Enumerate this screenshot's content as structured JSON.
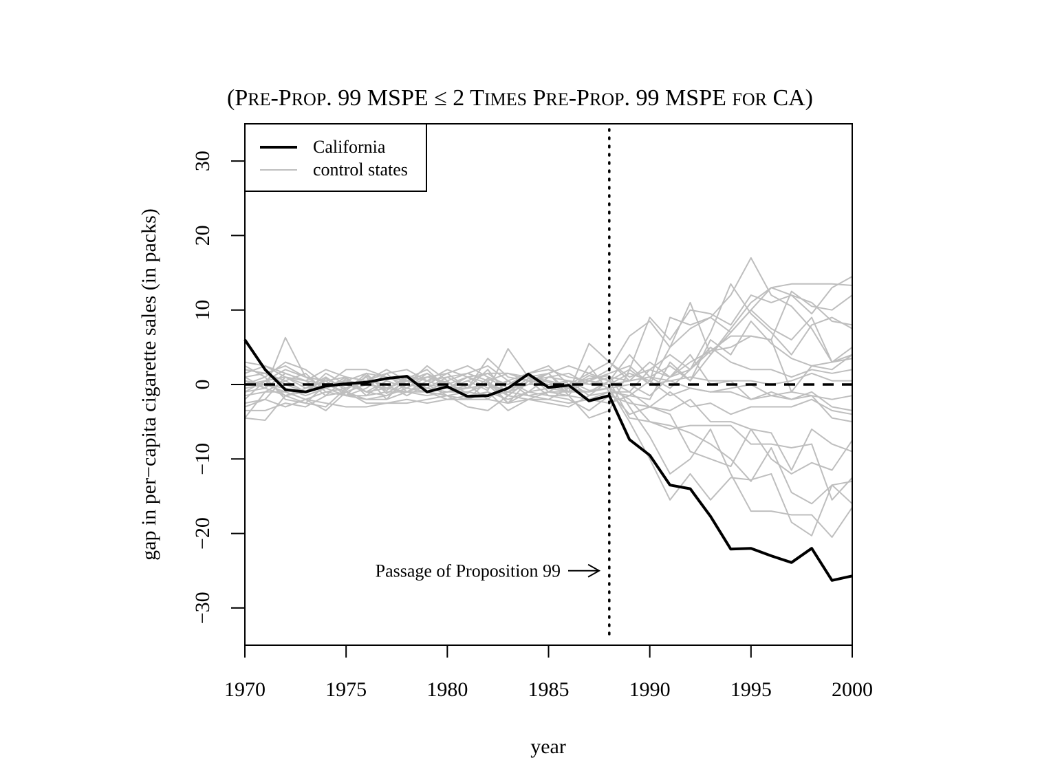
{
  "chart_data": {
    "type": "line",
    "title_parts": [
      {
        "t": "(",
        "sc": false
      },
      {
        "t": "P",
        "sc": false
      },
      {
        "t": "RE",
        "sc": true
      },
      {
        "t": "-P",
        "sc": false
      },
      {
        "t": "ROP",
        "sc": true
      },
      {
        "t": ". 99 MSPE ≤ 2 T",
        "sc": false
      },
      {
        "t": "IMES",
        "sc": true
      },
      {
        "t": " P",
        "sc": false
      },
      {
        "t": "RE",
        "sc": true
      },
      {
        "t": "-P",
        "sc": false
      },
      {
        "t": "ROP",
        "sc": true
      },
      {
        "t": ". 99 MSPE ",
        "sc": false
      },
      {
        "t": "FOR",
        "sc": true
      },
      {
        "t": " CA)",
        "sc": false
      }
    ],
    "xlabel": "year",
    "ylabel": "gap in per−capita cigarette sales (in packs)",
    "xlim": [
      1970,
      2000
    ],
    "ylim": [
      -35,
      35
    ],
    "x_ticks": [
      1970,
      1975,
      1980,
      1985,
      1990,
      1995,
      2000
    ],
    "x_tick_labels": [
      "1970",
      "1975",
      "1980",
      "1985",
      "1990",
      "1995",
      "2000"
    ],
    "y_ticks": [
      -30,
      -20,
      -10,
      0,
      10,
      20,
      30
    ],
    "y_tick_labels": [
      "−30",
      "−20",
      "−10",
      "0",
      "10",
      "20",
      "30"
    ],
    "grid": false,
    "legend": {
      "position": "top-left",
      "entries": [
        {
          "label": "California",
          "color": "#000000",
          "width": 4
        },
        {
          "label": "control states",
          "color": "#bebebe",
          "width": 2
        }
      ]
    },
    "reference_line": {
      "y": 0,
      "style": "dashed",
      "color": "#000000"
    },
    "event_line": {
      "x": 1988,
      "style": "dotted",
      "color": "#000000"
    },
    "annotation": {
      "text": "Passage of Proposition 99",
      "arrow_x": 1987.5,
      "y": -25
    },
    "x": [
      1970,
      1971,
      1972,
      1973,
      1974,
      1975,
      1976,
      1977,
      1978,
      1979,
      1980,
      1981,
      1982,
      1983,
      1984,
      1985,
      1986,
      1987,
      1988,
      1989,
      1990,
      1991,
      1992,
      1993,
      1994,
      1995,
      1996,
      1997,
      1998,
      1999,
      2000
    ],
    "series": [
      {
        "role": "treated",
        "color": "#000000",
        "values": [
          6.0,
          2.0,
          -0.7,
          -1.0,
          -0.2,
          0.1,
          0.3,
          0.8,
          1.1,
          -1.0,
          -0.3,
          -1.6,
          -1.5,
          -0.5,
          1.4,
          -0.4,
          -0.1,
          -2.2,
          -1.5,
          -7.4,
          -9.5,
          -13.5,
          -14.0,
          -17.7,
          -22.1,
          -22.0,
          -23.0,
          -23.9,
          -22.0,
          -26.3,
          -25.7
        ]
      },
      {
        "role": "control",
        "color": "#bebebe",
        "values": [
          2.0,
          1.5,
          0.5,
          -1.0,
          0.8,
          -0.5,
          0.3,
          -0.8,
          1.2,
          0.5,
          -0.5,
          1.0,
          0.2,
          -1.0,
          0.8,
          0.3,
          -0.5,
          1.2,
          0.5,
          -4.5,
          -5.0,
          -5.5,
          -6.5,
          -8.0,
          -10.0,
          -13.0,
          -8.5,
          -14.5,
          -16.0,
          -13.5,
          -13.0
        ]
      },
      {
        "role": "control",
        "color": "#bebebe",
        "values": [
          -3.0,
          -2.0,
          1.0,
          0.5,
          -1.5,
          0.8,
          -1.0,
          0.5,
          -0.5,
          1.0,
          0.3,
          -1.2,
          0.8,
          -0.5,
          1.5,
          -1.0,
          0.5,
          -0.8,
          -0.5,
          -5.0,
          -10.0,
          -15.5,
          -12.0,
          -15.5,
          -12.5,
          -12.8,
          -12.0,
          -18.5,
          -20.3,
          -13.5,
          -16.0
        ]
      },
      {
        "role": "control",
        "color": "#bebebe",
        "values": [
          1.0,
          -0.5,
          6.3,
          1.0,
          0.5,
          -1.5,
          1.2,
          -0.5,
          0.8,
          2.0,
          -0.5,
          0.5,
          -0.8,
          4.8,
          1.0,
          0.5,
          -0.2,
          0.8,
          1.2,
          -3.0,
          -7.0,
          -12.0,
          -10.0,
          -6.0,
          -12.0,
          -17.0,
          -17.0,
          -17.5,
          -17.5,
          -20.5,
          -16.5
        ]
      },
      {
        "role": "control",
        "color": "#bebebe",
        "values": [
          -4.5,
          -4.8,
          -1.5,
          -0.5,
          1.0,
          -0.8,
          1.5,
          -1.2,
          0.5,
          -0.5,
          1.0,
          -0.5,
          2.0,
          -1.5,
          0.5,
          1.5,
          -1.5,
          2.5,
          -1.0,
          -4.0,
          -3.0,
          -4.0,
          -9.0,
          -10.0,
          -11.0,
          -6.0,
          -6.5,
          -11.5,
          -6.0,
          -8.0,
          -9.0
        ]
      },
      {
        "role": "control",
        "color": "#bebebe",
        "values": [
          2.5,
          1.0,
          -2.0,
          -2.5,
          0.0,
          0.5,
          -1.0,
          -0.5,
          0.5,
          -0.5,
          -1.0,
          -0.5,
          0.0,
          -1.5,
          0.5,
          0.0,
          -0.5,
          0.5,
          -0.5,
          -2.0,
          -5.0,
          -6.0,
          -5.5,
          -5.5,
          -5.5,
          -8.0,
          -8.0,
          -8.5,
          -8.0,
          -15.5,
          -12.5
        ]
      },
      {
        "role": "control",
        "color": "#bebebe",
        "values": [
          0.5,
          -0.5,
          -1.5,
          -2.5,
          -3.0,
          -0.5,
          1.0,
          -2.0,
          1.0,
          -1.0,
          0.5,
          -2.0,
          0.5,
          -2.5,
          0.5,
          -1.5,
          -2.0,
          -3.5,
          -1.5,
          -2.5,
          -3.0,
          -3.5,
          -2.0,
          -5.0,
          -5.0,
          -6.0,
          -10.0,
          -12.0,
          -10.5,
          -11.5,
          -7.5
        ]
      },
      {
        "role": "control",
        "color": "#bebebe",
        "values": [
          1.5,
          2.5,
          1.0,
          -0.5,
          0.5,
          -1.5,
          -0.5,
          1.5,
          -1.0,
          0.5,
          2.0,
          1.0,
          -0.5,
          0.5,
          -1.0,
          1.0,
          0.5,
          -1.5,
          0.5,
          4.0,
          1.0,
          -0.5,
          2.0,
          7.0,
          13.5,
          9.5,
          7.0,
          4.0,
          8.0,
          9.0,
          7.5
        ]
      },
      {
        "role": "control",
        "color": "#bebebe",
        "values": [
          -2.0,
          0.5,
          2.0,
          1.0,
          -0.5,
          1.0,
          -1.5,
          0.5,
          -0.5,
          1.5,
          -0.5,
          0.5,
          1.5,
          -0.5,
          0.0,
          1.5,
          -1.0,
          0.5,
          2.0,
          6.5,
          8.5,
          5.0,
          7.5,
          9.0,
          12.0,
          17.0,
          12.0,
          10.5,
          7.5,
          3.0,
          3.5
        ]
      },
      {
        "role": "control",
        "color": "#bebebe",
        "values": [
          3.0,
          2.5,
          1.5,
          0.5,
          2.0,
          1.0,
          0.5,
          2.0,
          0.5,
          1.0,
          1.5,
          2.5,
          1.0,
          0.0,
          1.5,
          2.0,
          1.0,
          0.5,
          1.5,
          2.5,
          0.0,
          5.0,
          11.0,
          4.0,
          7.5,
          11.0,
          13.0,
          12.0,
          9.5,
          13.0,
          14.5
        ]
      },
      {
        "role": "control",
        "color": "#bebebe",
        "values": [
          0.0,
          1.0,
          3.0,
          2.0,
          0.0,
          0.5,
          1.5,
          1.0,
          0.0,
          2.5,
          0.5,
          1.5,
          2.5,
          0.5,
          1.5,
          2.5,
          0.0,
          1.5,
          0.5,
          2.0,
          9.0,
          6.0,
          10.0,
          9.5,
          8.0,
          12.0,
          11.0,
          12.0,
          11.0,
          8.5,
          8.0
        ]
      },
      {
        "role": "control",
        "color": "#bebebe",
        "values": [
          -1.5,
          -1.0,
          0.5,
          1.5,
          -1.0,
          -0.5,
          0.5,
          0.0,
          -1.5,
          0.0,
          -1.5,
          -1.0,
          0.0,
          -2.5,
          -1.0,
          -0.5,
          -1.0,
          0.5,
          0.0,
          1.5,
          0.5,
          9.0,
          8.0,
          9.0,
          7.0,
          10.0,
          13.0,
          13.5,
          13.5,
          13.5,
          13.3
        ]
      },
      {
        "role": "control",
        "color": "#bebebe",
        "values": [
          -1.0,
          0.5,
          -1.5,
          -1.0,
          1.5,
          0.0,
          -1.0,
          -1.5,
          0.0,
          -0.5,
          -1.0,
          0.0,
          -2.0,
          0.5,
          -1.5,
          -2.0,
          -0.5,
          -1.0,
          0.5,
          -1.0,
          2.0,
          4.0,
          2.0,
          4.5,
          5.0,
          6.5,
          6.0,
          12.5,
          10.5,
          10.0,
          12.0
        ]
      },
      {
        "role": "control",
        "color": "#bebebe",
        "values": [
          -3.5,
          -3.5,
          -2.5,
          -3.0,
          -1.5,
          -1.0,
          -2.0,
          -2.0,
          -1.0,
          -1.0,
          -2.0,
          -1.5,
          -1.0,
          -3.5,
          -2.0,
          -2.5,
          -3.0,
          -1.5,
          -1.0,
          -1.5,
          -2.0,
          3.0,
          0.5,
          6.0,
          4.0,
          8.5,
          5.5,
          3.5,
          2.5,
          2.0,
          4.0
        ]
      },
      {
        "role": "control",
        "color": "#bebebe",
        "values": [
          2.0,
          1.5,
          0.0,
          -1.0,
          0.0,
          -1.0,
          0.0,
          -0.5,
          -1.0,
          0.0,
          -0.5,
          -0.5,
          0.0,
          -1.0,
          0.0,
          0.0,
          0.5,
          0.0,
          1.0,
          0.5,
          1.0,
          2.5,
          0.5,
          4.0,
          7.0,
          10.0,
          7.5,
          6.0,
          9.0,
          3.0,
          5.0
        ]
      },
      {
        "role": "control",
        "color": "#bebebe",
        "values": [
          -1.0,
          -0.5,
          1.5,
          0.5,
          0.0,
          2.0,
          2.0,
          1.0,
          0.5,
          1.5,
          0.0,
          1.0,
          1.5,
          1.5,
          0.5,
          1.0,
          1.5,
          0.0,
          0.0,
          0.5,
          3.0,
          1.0,
          3.0,
          4.5,
          6.5,
          6.5,
          6.0,
          -1.0,
          2.5,
          3.0,
          4.0
        ]
      },
      {
        "role": "control",
        "color": "#bebebe",
        "values": [
          0.5,
          0.0,
          -0.5,
          -1.5,
          -0.5,
          -1.5,
          -1.5,
          -1.0,
          -1.0,
          -1.5,
          -1.0,
          -1.0,
          -1.5,
          -1.0,
          -1.5,
          -1.0,
          -1.0,
          -1.0,
          -0.5,
          0.0,
          -1.5,
          1.0,
          4.0,
          0.0,
          0.5,
          -2.0,
          -1.0,
          -2.0,
          -1.0,
          -3.0,
          -3.5
        ]
      },
      {
        "role": "control",
        "color": "#bebebe",
        "values": [
          -0.5,
          0.0,
          -1.0,
          -2.0,
          -1.0,
          -1.5,
          -2.0,
          -1.5,
          -0.5,
          -1.0,
          -1.5,
          -2.0,
          -1.0,
          -2.0,
          -1.0,
          -1.5,
          -1.5,
          -2.0,
          -1.0,
          -1.0,
          -3.0,
          -1.0,
          -3.0,
          -2.5,
          -4.0,
          -3.0,
          -3.0,
          -3.0,
          -2.0,
          -3.5,
          -4.0
        ]
      },
      {
        "role": "control",
        "color": "#bebebe",
        "values": [
          -4.5,
          -1.0,
          -1.0,
          -2.0,
          -3.5,
          -1.0,
          -2.5,
          -2.5,
          -2.5,
          -2.0,
          -1.5,
          -3.0,
          -3.5,
          -1.5,
          -2.0,
          -1.0,
          -1.5,
          -4.5,
          -3.5,
          2.0,
          0.0,
          0.5,
          -0.5,
          -1.0,
          -0.5,
          0.0,
          -1.5,
          -1.0,
          -1.5,
          -4.5,
          -5.0
        ]
      },
      {
        "role": "control",
        "color": "#bebebe",
        "values": [
          1.0,
          1.5,
          2.5,
          1.0,
          0.5,
          1.0,
          0.5,
          1.5,
          2.0,
          0.5,
          1.0,
          1.5,
          0.5,
          1.5,
          1.0,
          1.5,
          2.5,
          1.5,
          3.0,
          0.5,
          1.0,
          0.5,
          1.0,
          0.5,
          0.5,
          0.5,
          0.0,
          0.5,
          1.5,
          0.5,
          0.5
        ]
      },
      {
        "role": "control",
        "color": "#bebebe",
        "values": [
          -2.5,
          -2.0,
          -3.0,
          -2.0,
          -2.5,
          -3.0,
          -3.0,
          -2.5,
          -2.0,
          -2.5,
          -2.0,
          -2.0,
          -2.0,
          -2.5,
          -2.0,
          -2.0,
          -2.5,
          -2.0,
          -2.5,
          -1.5,
          0.5,
          -1.5,
          -0.5,
          -1.0,
          -1.0,
          -2.0,
          -1.5,
          -2.0,
          -1.5,
          -2.0,
          -1.5
        ]
      },
      {
        "role": "control",
        "color": "#bebebe",
        "values": [
          0.0,
          0.5,
          1.0,
          0.0,
          -0.5,
          0.5,
          0.0,
          -0.5,
          0.5,
          0.0,
          1.5,
          -0.5,
          3.5,
          1.0,
          0.5,
          0.0,
          -1.0,
          5.5,
          3.0,
          1.0,
          2.0,
          1.0,
          2.0,
          5.0,
          3.0,
          2.0,
          2.0,
          1.0,
          2.0,
          1.5,
          2.0
        ]
      }
    ]
  }
}
